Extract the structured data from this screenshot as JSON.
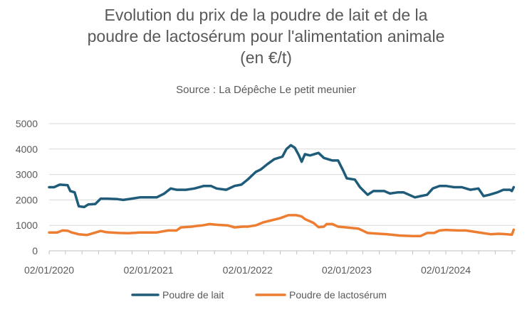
{
  "chart_data": {
    "type": "line",
    "title_lines": [
      "Evolution du prix  de la poudre de lait et de la",
      "poudre de lactosérum pour l'alimentation animale",
      "(en €/t)"
    ],
    "subtitle": "Source : La Dépêche Le petit meunier",
    "xlabel": "",
    "ylabel": "",
    "ylim": [
      0,
      5000
    ],
    "yticks": [
      0,
      1000,
      2000,
      3000,
      4000,
      5000
    ],
    "xrange": [
      "2020-01-02",
      "2024-09-15"
    ],
    "xticks": [
      "02/01/2020",
      "02/01/2021",
      "02/01/2022",
      "02/01/2023",
      "02/01/2024"
    ],
    "grid": true,
    "legend_position": "bottom",
    "series": [
      {
        "name": "Poudre de lait",
        "color": "#1F5C7A",
        "points": [
          [
            "2020-01-02",
            2500
          ],
          [
            "2020-01-20",
            2500
          ],
          [
            "2020-02-10",
            2600
          ],
          [
            "2020-03-10",
            2580
          ],
          [
            "2020-03-20",
            2350
          ],
          [
            "2020-04-05",
            2300
          ],
          [
            "2020-04-20",
            1750
          ],
          [
            "2020-05-10",
            1720
          ],
          [
            "2020-05-25",
            1820
          ],
          [
            "2020-06-20",
            1840
          ],
          [
            "2020-07-10",
            2050
          ],
          [
            "2020-08-01",
            2050
          ],
          [
            "2020-09-10",
            2030
          ],
          [
            "2020-10-01",
            2000
          ],
          [
            "2020-11-01",
            2050
          ],
          [
            "2020-12-01",
            2100
          ],
          [
            "2021-01-02",
            2100
          ],
          [
            "2021-02-01",
            2100
          ],
          [
            "2021-03-01",
            2250
          ],
          [
            "2021-03-25",
            2450
          ],
          [
            "2021-04-15",
            2400
          ],
          [
            "2021-05-20",
            2400
          ],
          [
            "2021-06-20",
            2450
          ],
          [
            "2021-07-25",
            2550
          ],
          [
            "2021-08-20",
            2550
          ],
          [
            "2021-09-10",
            2450
          ],
          [
            "2021-10-15",
            2400
          ],
          [
            "2021-11-15",
            2550
          ],
          [
            "2021-12-10",
            2600
          ],
          [
            "2022-01-02",
            2800
          ],
          [
            "2022-02-01",
            3100
          ],
          [
            "2022-02-20",
            3200
          ],
          [
            "2022-03-15",
            3400
          ],
          [
            "2022-04-10",
            3600
          ],
          [
            "2022-05-10",
            3700
          ],
          [
            "2022-05-25",
            4000
          ],
          [
            "2022-06-10",
            4150
          ],
          [
            "2022-06-25",
            4050
          ],
          [
            "2022-07-10",
            3750
          ],
          [
            "2022-07-20",
            3500
          ],
          [
            "2022-08-01",
            3800
          ],
          [
            "2022-08-20",
            3750
          ],
          [
            "2022-09-20",
            3850
          ],
          [
            "2022-10-10",
            3650
          ],
          [
            "2022-11-10",
            3550
          ],
          [
            "2022-12-01",
            3550
          ],
          [
            "2022-12-20",
            3150
          ],
          [
            "2023-01-02",
            2850
          ],
          [
            "2023-02-01",
            2800
          ],
          [
            "2023-02-20",
            2500
          ],
          [
            "2023-03-20",
            2200
          ],
          [
            "2023-04-10",
            2350
          ],
          [
            "2023-05-20",
            2350
          ],
          [
            "2023-06-10",
            2250
          ],
          [
            "2023-07-10",
            2300
          ],
          [
            "2023-07-30",
            2300
          ],
          [
            "2023-08-20",
            2200
          ],
          [
            "2023-09-10",
            2100
          ],
          [
            "2023-10-01",
            2150
          ],
          [
            "2023-10-25",
            2200
          ],
          [
            "2023-11-15",
            2450
          ],
          [
            "2023-12-10",
            2550
          ],
          [
            "2024-01-02",
            2550
          ],
          [
            "2024-02-01",
            2500
          ],
          [
            "2024-03-01",
            2500
          ],
          [
            "2024-04-01",
            2400
          ],
          [
            "2024-05-01",
            2450
          ],
          [
            "2024-05-20",
            2150
          ],
          [
            "2024-06-10",
            2200
          ],
          [
            "2024-07-10",
            2300
          ],
          [
            "2024-08-01",
            2400
          ],
          [
            "2024-08-25",
            2400
          ],
          [
            "2024-09-01",
            2350
          ],
          [
            "2024-09-08",
            2500
          ]
        ]
      },
      {
        "name": "Poudre de lactosérum",
        "color": "#ED7D31",
        "points": [
          [
            "2020-01-02",
            720
          ],
          [
            "2020-02-01",
            720
          ],
          [
            "2020-02-20",
            800
          ],
          [
            "2020-03-10",
            790
          ],
          [
            "2020-03-25",
            720
          ],
          [
            "2020-04-20",
            650
          ],
          [
            "2020-05-20",
            620
          ],
          [
            "2020-06-15",
            700
          ],
          [
            "2020-07-10",
            780
          ],
          [
            "2020-08-01",
            730
          ],
          [
            "2020-09-15",
            700
          ],
          [
            "2020-10-20",
            690
          ],
          [
            "2020-12-01",
            720
          ],
          [
            "2021-01-02",
            720
          ],
          [
            "2021-02-01",
            720
          ],
          [
            "2021-03-15",
            800
          ],
          [
            "2021-04-15",
            800
          ],
          [
            "2021-05-01",
            920
          ],
          [
            "2021-06-10",
            950
          ],
          [
            "2021-07-01",
            980
          ],
          [
            "2021-07-20",
            1000
          ],
          [
            "2021-08-15",
            1050
          ],
          [
            "2021-09-15",
            1020
          ],
          [
            "2021-10-20",
            1000
          ],
          [
            "2021-11-15",
            920
          ],
          [
            "2021-12-15",
            950
          ],
          [
            "2022-01-02",
            950
          ],
          [
            "2022-02-01",
            1000
          ],
          [
            "2022-03-01",
            1120
          ],
          [
            "2022-04-01",
            1200
          ],
          [
            "2022-05-01",
            1280
          ],
          [
            "2022-06-01",
            1400
          ],
          [
            "2022-07-01",
            1400
          ],
          [
            "2022-07-20",
            1350
          ],
          [
            "2022-08-01",
            1250
          ],
          [
            "2022-09-01",
            1100
          ],
          [
            "2022-09-20",
            930
          ],
          [
            "2022-10-10",
            950
          ],
          [
            "2022-10-20",
            1050
          ],
          [
            "2022-11-10",
            1050
          ],
          [
            "2022-12-01",
            950
          ],
          [
            "2023-01-02",
            920
          ],
          [
            "2023-02-15",
            870
          ],
          [
            "2023-03-20",
            700
          ],
          [
            "2023-04-20",
            680
          ],
          [
            "2023-06-01",
            650
          ],
          [
            "2023-07-15",
            600
          ],
          [
            "2023-09-01",
            580
          ],
          [
            "2023-10-01",
            580
          ],
          [
            "2023-10-25",
            700
          ],
          [
            "2023-11-20",
            700
          ],
          [
            "2023-12-10",
            800
          ],
          [
            "2024-01-02",
            820
          ],
          [
            "2024-02-15",
            800
          ],
          [
            "2024-03-15",
            800
          ],
          [
            "2024-04-15",
            750
          ],
          [
            "2024-05-15",
            700
          ],
          [
            "2024-06-15",
            650
          ],
          [
            "2024-07-15",
            670
          ],
          [
            "2024-08-15",
            650
          ],
          [
            "2024-09-01",
            630
          ],
          [
            "2024-09-08",
            830
          ]
        ]
      }
    ]
  }
}
